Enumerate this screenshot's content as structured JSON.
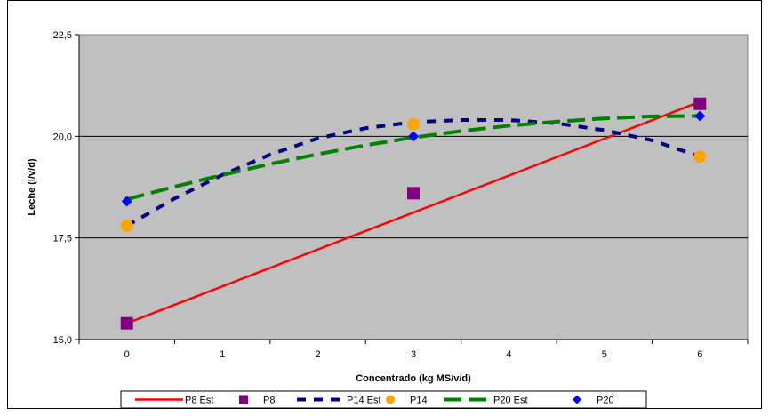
{
  "chart_data": {
    "type": "line",
    "title": "",
    "xlabel": "Concentrado (kg MS/v/d)",
    "ylabel": "Leche (l/v/d)",
    "xlim": [
      -0.5,
      6.5
    ],
    "ylim": [
      15.0,
      22.5
    ],
    "x_ticks": [
      "0",
      "1",
      "2",
      "3",
      "4",
      "5",
      "6"
    ],
    "y_ticks": [
      "15,0",
      "17,5",
      "20,0",
      "22,5"
    ],
    "y_tick_values": [
      15.0,
      17.5,
      20.0,
      22.5
    ],
    "grid": "horizontal",
    "plot_background": "#c0c0c0",
    "legend_position": "bottom",
    "series": [
      {
        "name": "P8 Est",
        "kind": "line",
        "style": "solid",
        "color": "#ff0000",
        "x": [
          0,
          6
        ],
        "y": [
          15.4,
          20.85
        ]
      },
      {
        "name": "P8",
        "kind": "marker",
        "marker": "square",
        "color": "#800080",
        "x": [
          0,
          3,
          6
        ],
        "y": [
          15.4,
          18.6,
          20.8
        ]
      },
      {
        "name": "P14 Est",
        "kind": "line",
        "style": "dashed",
        "color": "#000080",
        "x": [
          0,
          0.5,
          1,
          1.5,
          2,
          2.5,
          3,
          3.5,
          4,
          4.5,
          5,
          5.5,
          6
        ],
        "y": [
          17.8,
          18.47,
          19.05,
          19.55,
          19.95,
          20.2,
          20.35,
          20.4,
          20.4,
          20.32,
          20.15,
          19.9,
          19.5
        ]
      },
      {
        "name": "P14",
        "kind": "marker",
        "marker": "circle",
        "color": "#ffa500",
        "x": [
          0,
          3,
          6
        ],
        "y": [
          17.8,
          20.3,
          19.5
        ]
      },
      {
        "name": "P20 Est",
        "kind": "line",
        "style": "longdash",
        "color": "#008000",
        "x": [
          0,
          0.5,
          1,
          1.5,
          2,
          2.5,
          3,
          3.5,
          4,
          4.5,
          5,
          5.5,
          6
        ],
        "y": [
          18.45,
          18.76,
          19.05,
          19.32,
          19.56,
          19.78,
          19.97,
          20.13,
          20.26,
          20.36,
          20.44,
          20.49,
          20.5
        ]
      },
      {
        "name": "P20",
        "kind": "marker",
        "marker": "diamond",
        "color": "#0000ff",
        "x": [
          0,
          3,
          6
        ],
        "y": [
          18.4,
          20.0,
          20.5
        ]
      }
    ]
  }
}
